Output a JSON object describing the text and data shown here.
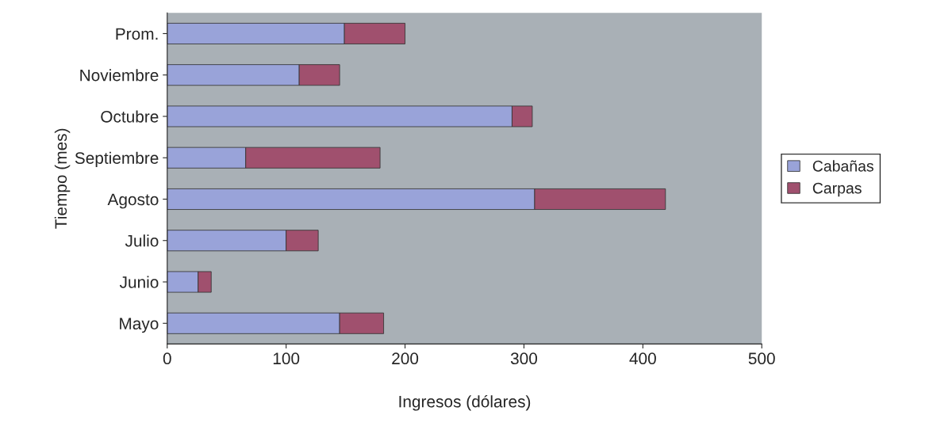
{
  "chart_data": {
    "type": "bar",
    "orientation": "horizontal",
    "stacked": true,
    "xlabel": "Ingresos (dólares)",
    "ylabel": "Tiempo (mes)",
    "categories": [
      "Prom.",
      "Noviembre",
      "Octubre",
      "Septiembre",
      "Agosto",
      "Julio",
      "Junio",
      "Mayo"
    ],
    "series": [
      {
        "name": "Cabañas",
        "color": "#99a3d9",
        "values": [
          149,
          111,
          290,
          66,
          309,
          100,
          26,
          145
        ]
      },
      {
        "name": "Carpas",
        "color": "#a0506e",
        "values": [
          51,
          34,
          17,
          113,
          110,
          27,
          11,
          37
        ]
      }
    ],
    "xlim": [
      0,
      500
    ],
    "xticks": [
      0,
      100,
      200,
      300,
      400,
      500
    ],
    "grid": false,
    "legend": "right"
  }
}
